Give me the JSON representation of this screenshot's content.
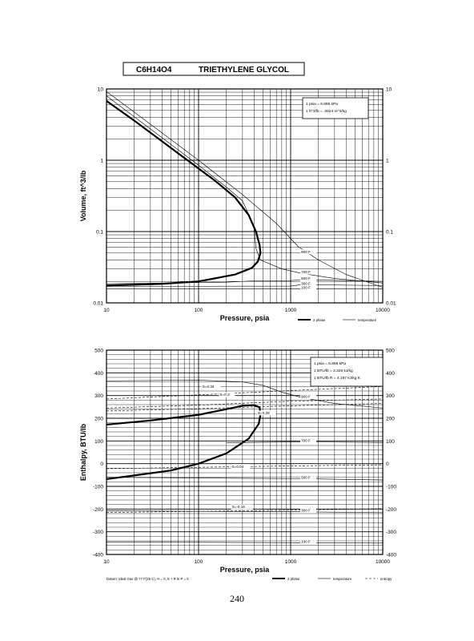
{
  "header": {
    "formula": "C6H14O4",
    "name": "TRIETHYLENE GLYCOL"
  },
  "page_number": "240",
  "chart_data": [
    {
      "type": "line",
      "id": "volume",
      "xscale": "log",
      "yscale": "log",
      "xlim": [
        10,
        10000
      ],
      "ylim": [
        0.01,
        10
      ],
      "xlabel": "Pressure,  psia",
      "ylabel": "Volume,  ft^3/lb",
      "x_ticks": [
        "10",
        "100",
        "1000",
        "10000"
      ],
      "y_ticks": [
        "0.01",
        "0.1",
        "1",
        "10"
      ],
      "grid": true,
      "conversion_note": [
        "1 psia = 6.895 kPa",
        "1 ft^3/lb = .0624 m^3/kg"
      ],
      "legend": [
        {
          "label": "2 phase",
          "style": "thick"
        },
        {
          "label": "temperature",
          "style": "thin"
        }
      ],
      "series": [
        {
          "style": "thick",
          "points": [
            [
              10,
              6.8
            ],
            [
              20,
              3.6
            ],
            [
              40,
              1.85
            ],
            [
              80,
              0.95
            ],
            [
              150,
              0.52
            ],
            [
              250,
              0.3
            ],
            [
              350,
              0.17
            ],
            [
              420,
              0.1
            ],
            [
              460,
              0.065
            ],
            [
              470,
              0.05
            ],
            [
              440,
              0.038
            ],
            [
              380,
              0.031
            ],
            [
              250,
              0.025
            ],
            [
              100,
              0.02
            ],
            [
              40,
              0.0185
            ],
            [
              10,
              0.0175
            ]
          ]
        },
        {
          "style": "thin",
          "label": "900 F",
          "points": [
            [
              10,
              9.2
            ],
            [
              30,
              3.2
            ],
            [
              100,
              1.0
            ],
            [
              300,
              0.33
            ],
            [
              700,
              0.13
            ],
            [
              1200,
              0.062
            ],
            [
              2000,
              0.04
            ],
            [
              4000,
              0.025
            ],
            [
              10000,
              0.0165
            ]
          ]
        },
        {
          "style": "thin",
          "label": "700 F",
          "points": [
            [
              10,
              8.0
            ],
            [
              100,
              0.85
            ],
            [
              200,
              0.42
            ],
            [
              300,
              0.27
            ],
            [
              400,
              0.12
            ],
            [
              420,
              0.058
            ],
            [
              470,
              0.04
            ],
            [
              800,
              0.03
            ],
            [
              1300,
              0.026
            ],
            [
              3000,
              0.022
            ],
            [
              10000,
              0.019
            ]
          ]
        },
        {
          "style": "thin",
          "label": "500 F",
          "points": [
            [
              10,
              0.0185
            ],
            [
              200,
              0.0195
            ],
            [
              450,
              0.0205
            ],
            [
              1000,
              0.0205
            ],
            [
              1300,
              0.0212
            ],
            [
              10000,
              0.02
            ]
          ]
        },
        {
          "style": "thin",
          "label": "300 F",
          "points": [
            [
              10,
              0.017
            ],
            [
              1000,
              0.0172
            ],
            [
              1300,
              0.018
            ],
            [
              10000,
              0.0175
            ]
          ]
        },
        {
          "style": "thin",
          "label": "100 F",
          "points": [
            [
              10,
              0.0158
            ],
            [
              1000,
              0.0158
            ],
            [
              1300,
              0.0158
            ],
            [
              10000,
              0.0157
            ]
          ]
        }
      ],
      "curve_labels": [
        {
          "text": "900 F",
          "x": 1300,
          "y": 0.05
        },
        {
          "text": "700 F",
          "x": 1300,
          "y": 0.026
        },
        {
          "text": "500 F",
          "x": 1300,
          "y": 0.0212
        },
        {
          "text": "300 F",
          "x": 1300,
          "y": 0.018
        },
        {
          "text": "100 F",
          "x": 1300,
          "y": 0.0158
        }
      ]
    },
    {
      "type": "line",
      "id": "enthalpy",
      "xscale": "log",
      "yscale": "linear",
      "xlim": [
        10,
        10000
      ],
      "ylim": [
        -400,
        500
      ],
      "xlabel": "Pressure,  psia",
      "ylabel": "Enthalpy,  BTU/lb",
      "x_ticks": [
        "10",
        "100",
        "1000",
        "10000"
      ],
      "y_ticks": [
        "-400",
        "-300",
        "-200",
        "-100",
        "0",
        "100",
        "200",
        "300",
        "400",
        "500"
      ],
      "grid": true,
      "conversion_note": [
        "1 psia = 6.895 kPa",
        "1 BTU/lb = 2.326 kJ/kg",
        "1 BTU/lb R = 4.187 kJ/kg K"
      ],
      "footnote": "Datum: Ideal Gas @ 77 F(25 C), H = 0, S + R ln P = 0",
      "legend": [
        {
          "label": "2 phase",
          "style": "thick"
        },
        {
          "label": "temperature",
          "style": "thin"
        },
        {
          "label": "entropy",
          "style": "dashed"
        }
      ],
      "series": [
        {
          "style": "thick",
          "points": [
            [
              10,
              172
            ],
            [
              30,
              190
            ],
            [
              100,
              215
            ],
            [
              200,
              240
            ],
            [
              300,
              255
            ],
            [
              400,
              258
            ],
            [
              460,
              248
            ],
            [
              470,
              215
            ],
            [
              450,
              175
            ],
            [
              350,
              110
            ],
            [
              200,
              45
            ],
            [
              100,
              0
            ],
            [
              50,
              -30
            ],
            [
              20,
              -52
            ],
            [
              10,
              -68
            ]
          ]
        },
        {
          "style": "thin",
          "label": "900 F",
          "points": [
            [
              10,
              365
            ],
            [
              100,
              368
            ],
            [
              300,
              360
            ],
            [
              500,
              345
            ],
            [
              800,
              315
            ],
            [
              1300,
              292
            ],
            [
              3000,
              265
            ],
            [
              10000,
              245
            ]
          ]
        },
        {
          "style": "thin",
          "label": "700 F",
          "points": [
            [
              200,
              92
            ],
            [
              1300,
              96
            ],
            [
              10000,
              93
            ]
          ]
        },
        {
          "style": "thin",
          "label": "500 F",
          "points": [
            [
              10,
              -60
            ],
            [
              400,
              -65
            ],
            [
              1300,
              -66
            ],
            [
              10000,
              -72
            ]
          ]
        },
        {
          "style": "thin",
          "label": "300 F",
          "points": [
            [
              10,
              -208
            ],
            [
              1300,
              -212
            ],
            [
              10000,
              -216
            ]
          ]
        },
        {
          "style": "thin",
          "label": "100 F",
          "points": [
            [
              10,
              -345
            ],
            [
              1300,
              -348
            ],
            [
              10000,
              -350
            ]
          ]
        },
        {
          "style": "dashed",
          "label": "S=0.34",
          "points": [
            [
              10,
              245
            ],
            [
              100,
              258
            ],
            [
              1000,
              275
            ],
            [
              10000,
              285
            ]
          ]
        },
        {
          "style": "dashed",
          "label": "S=0.3",
          "points": [
            [
              10,
              285
            ],
            [
              100,
              303
            ],
            [
              1000,
              322
            ],
            [
              10000,
              340
            ]
          ]
        },
        {
          "style": "dashed",
          "label": "S=0.28",
          "points": [
            [
              10,
              232
            ],
            [
              100,
              242
            ],
            [
              1000,
              255
            ],
            [
              10000,
              265
            ]
          ]
        },
        {
          "style": "dashed",
          "label": "S=0.04",
          "points": [
            [
              10,
              -22
            ],
            [
              1000,
              -10
            ],
            [
              10000,
              -5
            ]
          ]
        },
        {
          "style": "dashed",
          "label": "S=-0.16",
          "points": [
            [
              10,
              -215
            ],
            [
              1000,
              -205
            ],
            [
              10000,
              -198
            ]
          ]
        }
      ],
      "curve_labels": [
        {
          "text": "S=0.34",
          "x": 110,
          "y": 335
        },
        {
          "text": "S=0.3",
          "x": 170,
          "y": 298
        },
        {
          "text": "S=0.28",
          "x": 440,
          "y": 218
        },
        {
          "text": "900 F",
          "x": 1300,
          "y": 290
        },
        {
          "text": "700 F",
          "x": 1300,
          "y": 96
        },
        {
          "text": "S=0.04",
          "x": 230,
          "y": -18
        },
        {
          "text": "500 F",
          "x": 1300,
          "y": -66
        },
        {
          "text": "S=-0.16",
          "x": 230,
          "y": -196
        },
        {
          "text": "300 F",
          "x": 1300,
          "y": -212
        },
        {
          "text": "100 F",
          "x": 1300,
          "y": -348
        }
      ]
    }
  ]
}
